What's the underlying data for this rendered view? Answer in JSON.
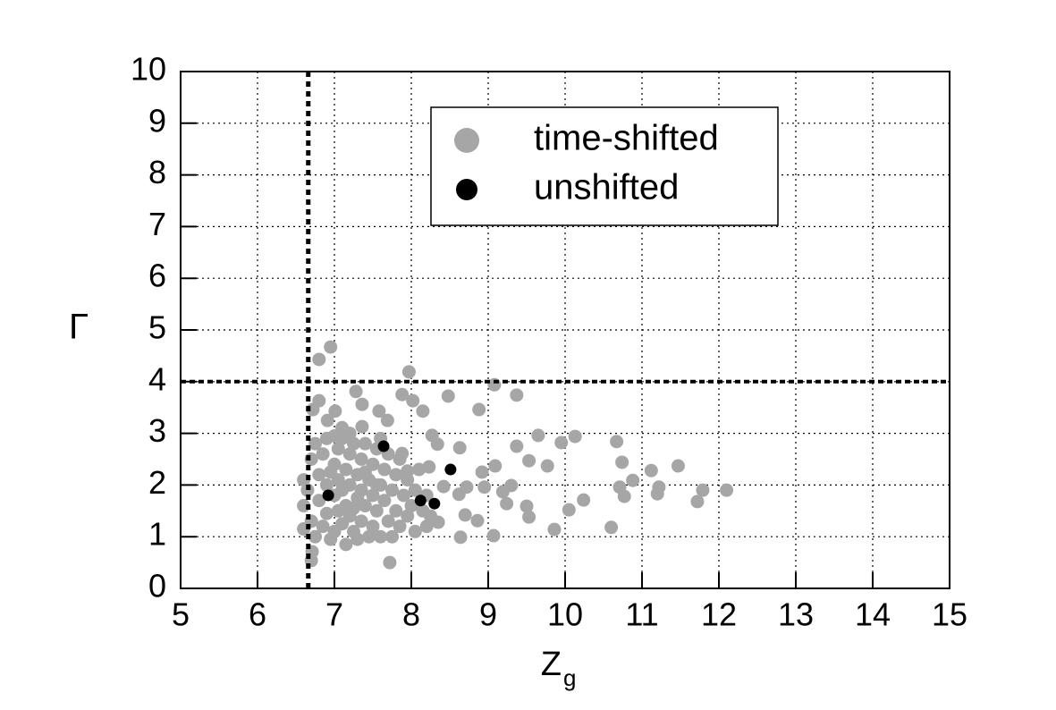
{
  "chart_data": {
    "type": "scatter",
    "xlabel": "Z",
    "xlabel_sub": "g",
    "ylabel": "Γ",
    "xlim": [
      5,
      15
    ],
    "xticks": [
      5,
      6,
      7,
      8,
      9,
      10,
      11,
      12,
      13,
      14,
      15
    ],
    "ylim": [
      0,
      10
    ],
    "yticks": [
      0,
      1,
      2,
      3,
      4,
      5,
      6,
      7,
      8,
      9,
      10
    ],
    "grid": true,
    "legend": "upper right",
    "reference_lines": {
      "x": 6.66,
      "y": 4
    },
    "series": [
      {
        "name": "time-shifted",
        "color": "#a6a6a6",
        "x": [
          6.95,
          6.8,
          7.97,
          9.08,
          9.37,
          8.48,
          7.28,
          7.88,
          6.8,
          8.02,
          7.36,
          6.72,
          7.01,
          7.58,
          8.15,
          8.88,
          6.91,
          7.69,
          7.1,
          7.36,
          8.27,
          9.65,
          10.13,
          9.95,
          9.37,
          8.63,
          8.34,
          10.67,
          7.88,
          9.53,
          10.74,
          9.77,
          11.47,
          11.12,
          10.88,
          9.09,
          8.92,
          7.95,
          8.23,
          10.71,
          11.22,
          11.79,
          12.1,
          11.2,
          10.77,
          10.24,
          9.3,
          8.95,
          9.19,
          9.24,
          9.5,
          10.05,
          11.72,
          8.62,
          8.72,
          8.42,
          8.7,
          8.35,
          8.86,
          9.53,
          9.07,
          8.64,
          9.86,
          10.6,
          7.72,
          6.71,
          6.7,
          6.6,
          6.6,
          6.6,
          6.65,
          6.7,
          6.7,
          6.75,
          6.75,
          6.8,
          6.8,
          6.85,
          6.85,
          6.9,
          6.9,
          6.9,
          6.95,
          7.0,
          7.0,
          7.0,
          7.05,
          7.05,
          7.05,
          7.1,
          7.1,
          7.1,
          7.15,
          7.15,
          7.15,
          7.2,
          7.2,
          7.2,
          7.25,
          7.25,
          7.3,
          7.3,
          7.3,
          7.35,
          7.35,
          7.35,
          7.4,
          7.4,
          7.45,
          7.45,
          7.5,
          7.5,
          7.5,
          7.55,
          7.55,
          7.6,
          7.6,
          7.65,
          7.65,
          7.7,
          7.7,
          7.75,
          7.75,
          7.8,
          7.8,
          7.85,
          7.85,
          7.9,
          7.95,
          7.95,
          8.0,
          8.05,
          8.05,
          8.1,
          8.15,
          8.2,
          8.2,
          8.25,
          7.0,
          7.2,
          7.6,
          6.95,
          7.25,
          7.4,
          7.55
        ],
        "values": [
          4.67,
          4.43,
          4.19,
          3.94,
          3.74,
          3.72,
          3.81,
          3.75,
          3.63,
          3.63,
          3.56,
          3.46,
          3.43,
          3.43,
          3.43,
          3.46,
          3.25,
          3.25,
          3.11,
          3.13,
          2.96,
          2.96,
          2.94,
          2.82,
          2.75,
          2.72,
          2.79,
          2.84,
          2.61,
          2.47,
          2.44,
          2.37,
          2.37,
          2.28,
          2.09,
          2.37,
          2.25,
          2.27,
          2.35,
          1.96,
          1.96,
          1.9,
          1.9,
          1.83,
          1.78,
          1.71,
          1.99,
          1.96,
          1.87,
          1.64,
          1.59,
          1.52,
          1.68,
          1.82,
          1.96,
          1.97,
          1.42,
          1.28,
          1.31,
          1.38,
          1.02,
          0.99,
          1.14,
          1.18,
          0.5,
          0.71,
          0.54,
          2.1,
          1.6,
          1.15,
          1.9,
          2.5,
          1.3,
          2.8,
          1.0,
          2.2,
          1.7,
          2.6,
          1.2,
          2.9,
          2.0,
          1.45,
          0.95,
          2.4,
          1.8,
          1.1,
          2.7,
          2.1,
          1.5,
          2.9,
          1.9,
          1.25,
          2.3,
          1.6,
          0.85,
          2.6,
          2.0,
          1.4,
          2.8,
          1.1,
          2.2,
          1.75,
          0.95,
          2.5,
          1.9,
          1.3,
          2.8,
          1.6,
          2.1,
          1.0,
          2.4,
          1.8,
          1.2,
          2.7,
          1.5,
          2.0,
          1.0,
          2.3,
          1.7,
          2.6,
          1.3,
          1.9,
          1.0,
          2.2,
          1.5,
          2.5,
          1.2,
          1.8,
          2.1,
          1.4,
          1.6,
          1.9,
          1.1,
          2.3,
          1.5,
          1.8,
          1.2,
          1.4,
          2.95,
          3.0,
          2.9,
          2.25,
          1.55,
          2.25,
          2.0
        ]
      },
      {
        "name": "unshifted",
        "color": "#000000",
        "x": [
          6.92,
          7.64,
          8.51,
          8.12,
          8.3
        ],
        "values": [
          1.8,
          2.75,
          2.3,
          1.7,
          1.64
        ]
      }
    ]
  }
}
